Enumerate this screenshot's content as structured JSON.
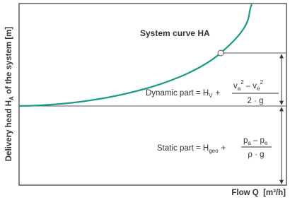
{
  "title": "System curve HA",
  "y_axis": {
    "label": "Delivery head H",
    "sub": "A",
    "rest": " of the system [m]"
  },
  "x_axis": {
    "label": "Flow Q  [m³/h]"
  },
  "dynamic": {
    "lhs": "Dynamic part = H",
    "lhs_sub": "V",
    "plus": "+",
    "num": [
      "v",
      "a",
      "2",
      "– v",
      "e",
      "2"
    ],
    "den": "2 · g"
  },
  "static": {
    "lhs": "Static part = H",
    "lhs_sub": "geo",
    "plus": "+",
    "num": [
      "p",
      "a",
      "– p",
      "e"
    ],
    "den": "ρ · g"
  }
}
